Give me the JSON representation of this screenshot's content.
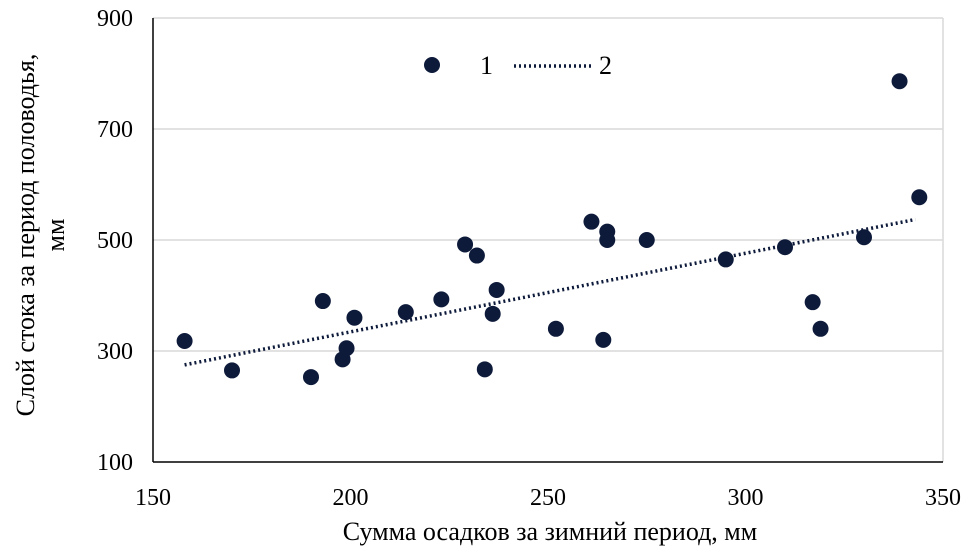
{
  "colors": {
    "marker": "#0d1a3a",
    "trendline": "#0d1a3a",
    "grid": "#d9d9d9",
    "axis": "#000000"
  },
  "chart_data": {
    "type": "scatter",
    "xlabel": "Сумма осадков за зимний период, мм",
    "ylabel_lines": [
      "Слой стока за период половодья,",
      "мм"
    ],
    "xlim": [
      150,
      350
    ],
    "ylim": [
      100,
      900
    ],
    "x_ticks": [
      150,
      200,
      250,
      300,
      350
    ],
    "y_ticks": [
      100,
      300,
      500,
      700,
      900
    ],
    "grid": "horizontal",
    "legend": {
      "placement": "top-center",
      "items": [
        {
          "label": "1",
          "kind": "marker"
        },
        {
          "label": "2",
          "kind": "dotted-line"
        }
      ]
    },
    "series": [
      {
        "kind": "points",
        "points": [
          [
            158,
            318
          ],
          [
            170,
            265
          ],
          [
            190,
            253
          ],
          [
            193,
            390
          ],
          [
            198,
            285
          ],
          [
            199,
            305
          ],
          [
            201,
            360
          ],
          [
            214,
            370
          ],
          [
            223,
            393
          ],
          [
            229,
            492
          ],
          [
            232,
            472
          ],
          [
            234,
            267
          ],
          [
            236,
            367
          ],
          [
            237,
            410
          ],
          [
            252,
            340
          ],
          [
            261,
            533
          ],
          [
            264,
            320
          ],
          [
            265,
            515
          ],
          [
            265,
            500
          ],
          [
            275,
            500
          ],
          [
            295,
            465
          ],
          [
            310,
            487
          ],
          [
            317,
            388
          ],
          [
            319,
            340
          ],
          [
            330,
            505
          ],
          [
            339,
            786
          ],
          [
            344,
            577
          ]
        ]
      },
      {
        "kind": "trendline",
        "from": [
          158,
          275
        ],
        "to": [
          343,
          537
        ]
      }
    ]
  }
}
